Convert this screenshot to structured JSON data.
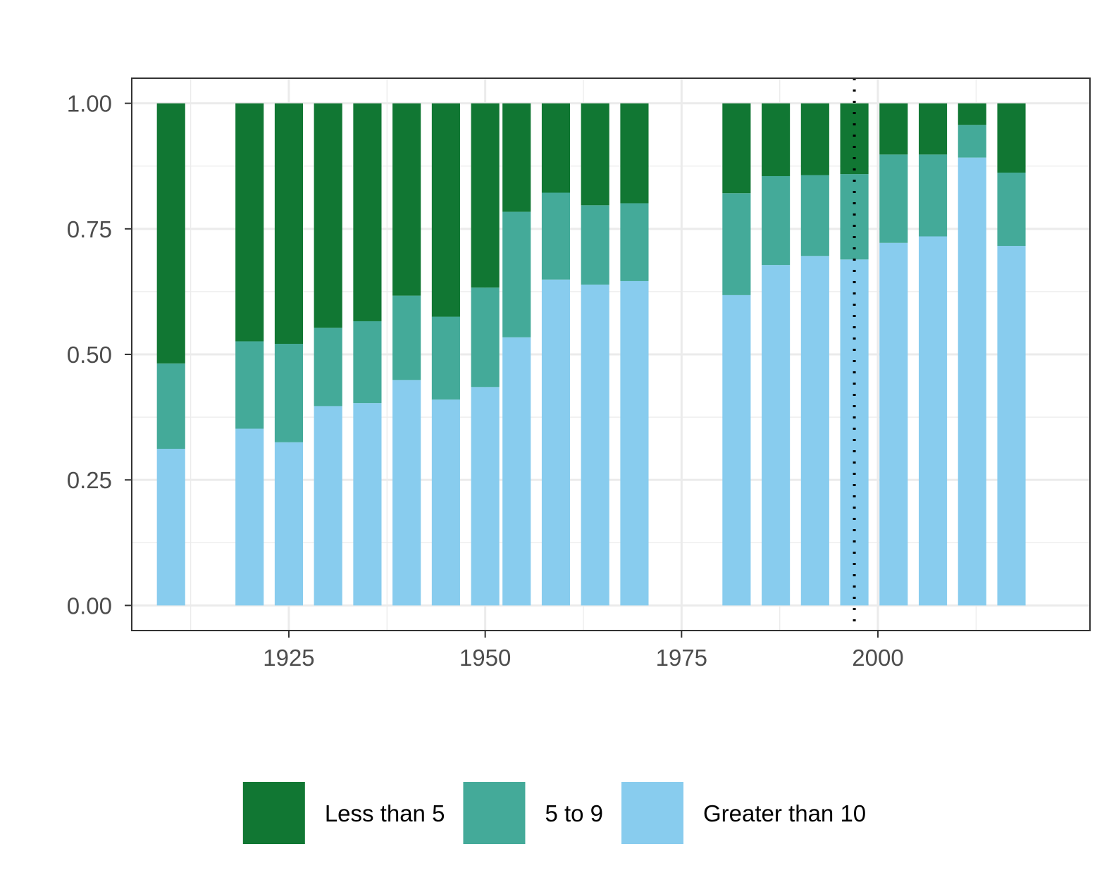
{
  "chart_data": {
    "type": "bar",
    "stacked": true,
    "title": "",
    "xlabel": "",
    "ylabel": "",
    "x": [
      1910,
      1920,
      1925,
      1930,
      1935,
      1940,
      1945,
      1950,
      1954,
      1959,
      1964,
      1969,
      1982,
      1987,
      1992,
      1997,
      2002,
      2007,
      2012,
      2017
    ],
    "series": [
      {
        "name": "Greater than 10",
        "color": "#88CCEE",
        "values": [
          0.312,
          0.352,
          0.325,
          0.397,
          0.403,
          0.449,
          0.41,
          0.435,
          0.534,
          0.649,
          0.639,
          0.646,
          0.618,
          0.678,
          0.696,
          0.689,
          0.722,
          0.735,
          0.892,
          0.716
        ]
      },
      {
        "name": "5 to 9",
        "color": "#44AA99",
        "values": [
          0.17,
          0.174,
          0.196,
          0.156,
          0.163,
          0.168,
          0.165,
          0.198,
          0.25,
          0.173,
          0.158,
          0.155,
          0.203,
          0.177,
          0.161,
          0.17,
          0.176,
          0.163,
          0.065,
          0.146
        ]
      },
      {
        "name": "Less than 5",
        "color": "#117733",
        "values": [
          0.518,
          0.474,
          0.479,
          0.447,
          0.434,
          0.383,
          0.425,
          0.367,
          0.216,
          0.178,
          0.203,
          0.199,
          0.179,
          0.145,
          0.143,
          0.141,
          0.102,
          0.102,
          0.043,
          0.138
        ]
      }
    ],
    "xlim": [
      1905,
      2027
    ],
    "ylim": [
      -0.05,
      1.05
    ],
    "xticks": [
      "1925",
      "1950",
      "1975",
      "2000"
    ],
    "yticks": [
      "0.00",
      "0.25",
      "0.50",
      "0.75",
      "1.00"
    ],
    "vline": {
      "x": 1997,
      "style": "dotted",
      "color": "#000000"
    },
    "grid": true,
    "legend_position": "bottom",
    "legend_order": [
      "Less than 5",
      "5 to 9",
      "Greater than 10"
    ]
  }
}
